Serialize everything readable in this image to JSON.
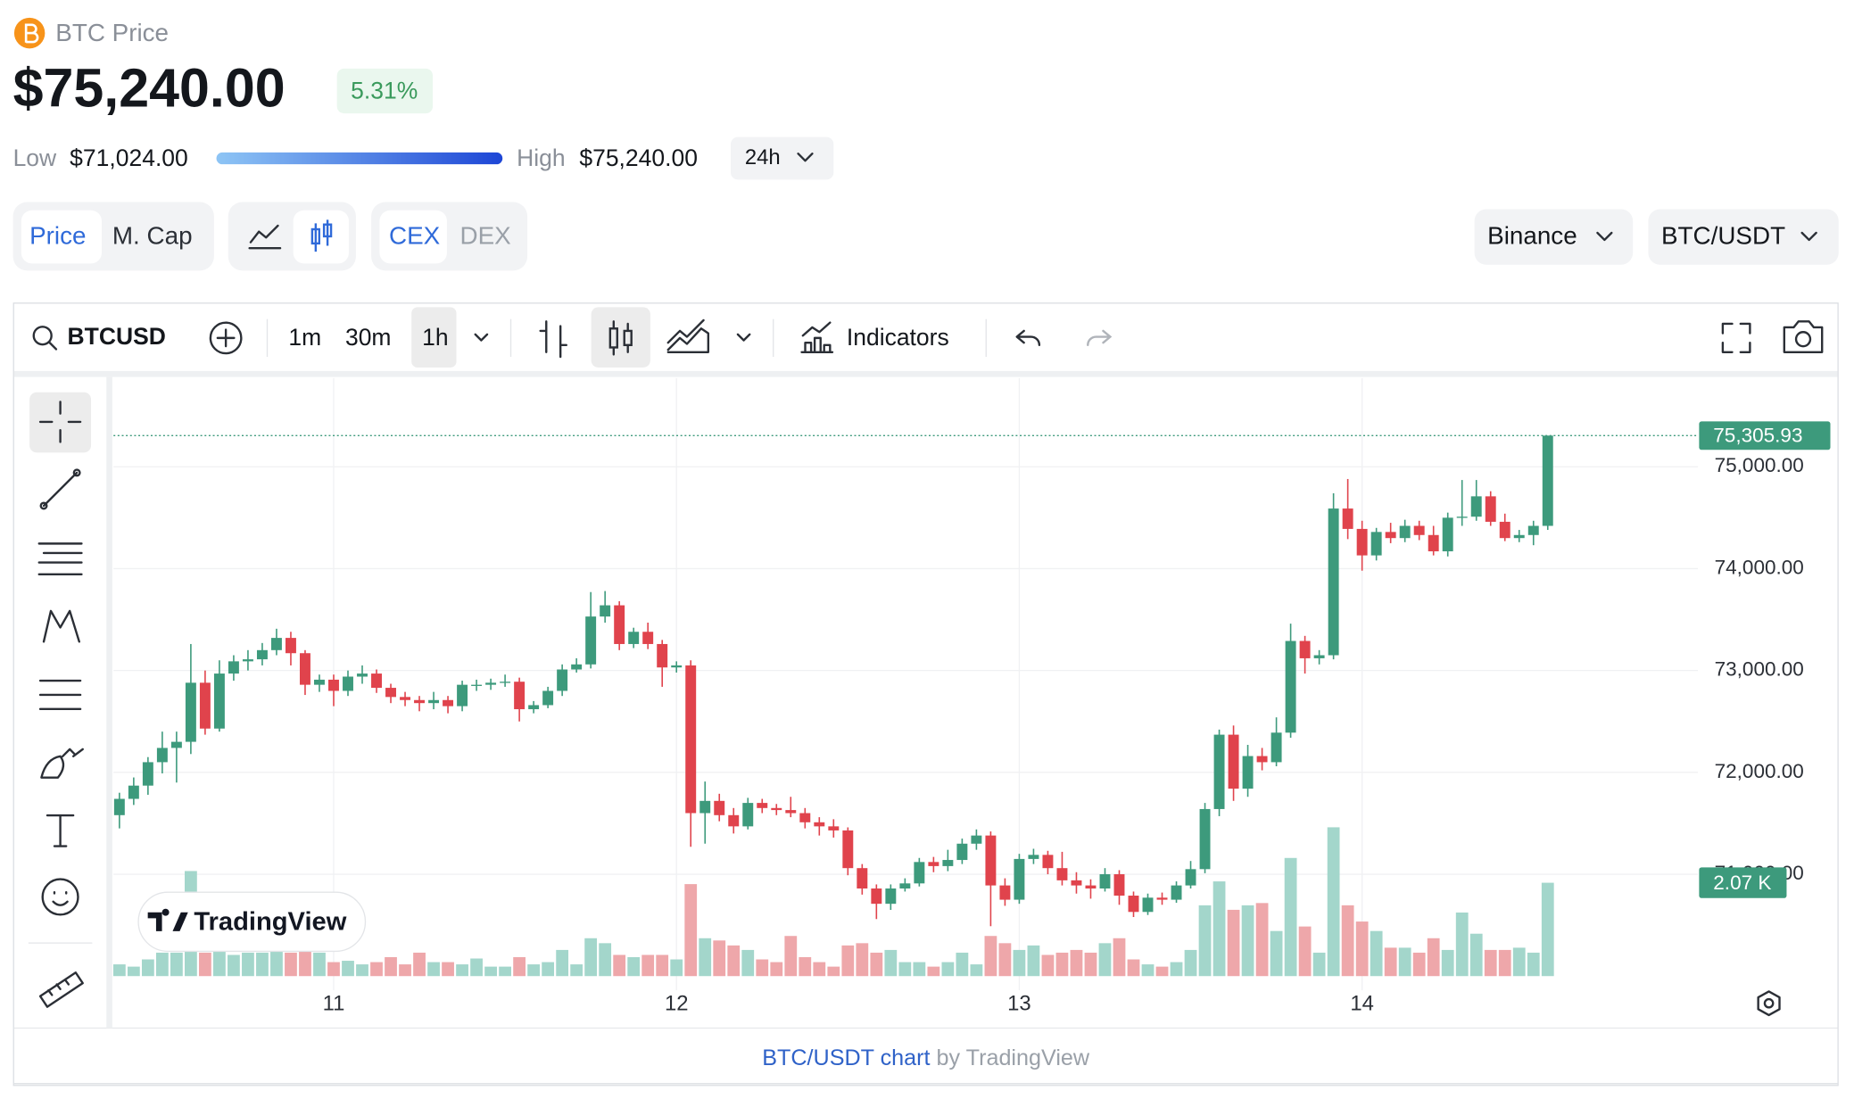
{
  "header": {
    "coin_label": "BTC Price",
    "price": "$75,240.00",
    "change": "5.31%",
    "low_label": "Low",
    "low": "$71,024.00",
    "high_label": "High",
    "high": "$75,240.00",
    "range": "24h"
  },
  "tabs": {
    "metric": [
      "Price",
      "M. Cap"
    ],
    "source": [
      "CEX",
      "DEX"
    ],
    "exchange": "Binance",
    "pair": "BTC/USDT"
  },
  "toolbar": {
    "symbol": "BTCUSD",
    "intervals": [
      "1m",
      "30m",
      "1h"
    ],
    "indicators": "Indicators"
  },
  "branding": "TradingView",
  "footer": {
    "link": "BTC/USDT chart",
    "suffix": "by TradingView"
  },
  "chart_data": {
    "type": "candlestick",
    "categories": [
      null,
      null,
      null,
      null,
      null,
      null,
      null,
      null,
      null,
      null,
      null,
      null,
      null,
      null,
      null,
      "11",
      null,
      null,
      null,
      null,
      null,
      null,
      null,
      null,
      null,
      null,
      null,
      null,
      null,
      null,
      null,
      null,
      null,
      null,
      null,
      null,
      null,
      null,
      null,
      "12",
      null,
      null,
      null,
      null,
      null,
      null,
      null,
      null,
      null,
      null,
      null,
      null,
      null,
      null,
      null,
      null,
      null,
      null,
      null,
      null,
      null,
      null,
      null,
      "13",
      null,
      null,
      null,
      null,
      null,
      null,
      null,
      null,
      null,
      null,
      null,
      null,
      null,
      null,
      null,
      null,
      null,
      null,
      null,
      null,
      null,
      null,
      null,
      "14",
      null,
      null,
      null,
      null,
      null,
      null,
      null,
      null,
      null,
      null,
      null,
      null,
      null
    ],
    "open": [
      71580,
      71740,
      71870,
      72100,
      72240,
      72300,
      72880,
      72430,
      72970,
      73090,
      73110,
      73200,
      73320,
      73170,
      72860,
      72910,
      72800,
      72940,
      72970,
      72830,
      72740,
      72710,
      72680,
      72710,
      72650,
      72860,
      72860,
      72880,
      72890,
      72620,
      72660,
      72800,
      73010,
      73060,
      73530,
      73640,
      73260,
      73380,
      73260,
      73030,
      73050,
      71600,
      71720,
      71580,
      71470,
      71700,
      71650,
      71630,
      71600,
      71510,
      71470,
      71430,
      71060,
      70860,
      70710,
      70860,
      70910,
      71120,
      71080,
      71140,
      71300,
      71380,
      70890,
      70750,
      71150,
      71190,
      71060,
      70940,
      70890,
      70860,
      71000,
      70790,
      70630,
      70770,
      70750,
      70890,
      71050,
      71640,
      72370,
      71840,
      72160,
      72100,
      72390,
      73290,
      73120,
      73150,
      74590,
      74390,
      74130,
      74360,
      74300,
      74420,
      74330,
      74170,
      74500,
      74510,
      74710,
      74460,
      74300,
      74330,
      74420
    ],
    "high": [
      71800,
      71950,
      72150,
      72400,
      72400,
      73260,
      73000,
      73100,
      73150,
      73200,
      73270,
      73410,
      73380,
      73200,
      72960,
      72960,
      73000,
      73050,
      73010,
      72870,
      72790,
      72750,
      72790,
      72750,
      72900,
      72910,
      72920,
      72960,
      72930,
      72700,
      72840,
      73060,
      73120,
      73770,
      73780,
      73680,
      73420,
      73470,
      73300,
      73090,
      73100,
      71910,
      71790,
      71650,
      71750,
      71740,
      71690,
      71760,
      71650,
      71560,
      71540,
      71460,
      71100,
      70900,
      70900,
      70960,
      71160,
      71170,
      71240,
      71350,
      71440,
      71420,
      70960,
      71200,
      71250,
      71230,
      71220,
      71020,
      70950,
      71060,
      71040,
      70830,
      70810,
      70820,
      70930,
      71130,
      71700,
      72420,
      72460,
      72270,
      72240,
      72540,
      73460,
      73340,
      73200,
      74740,
      74880,
      74470,
      74400,
      74450,
      74480,
      74470,
      74420,
      74550,
      74870,
      74870,
      74760,
      74540,
      74380,
      74470,
      75305.93
    ],
    "low": [
      71450,
      71680,
      71780,
      71990,
      71900,
      72180,
      72370,
      72400,
      72900,
      73000,
      73050,
      73150,
      73050,
      72760,
      72790,
      72650,
      72750,
      72870,
      72780,
      72680,
      72650,
      72600,
      72620,
      72580,
      72600,
      72800,
      72810,
      72840,
      72500,
      72580,
      72630,
      72750,
      72980,
      73020,
      73470,
      73200,
      73220,
      73210,
      72840,
      72980,
      71270,
      71300,
      71520,
      71400,
      71440,
      71600,
      71580,
      71560,
      71450,
      71380,
      71360,
      70990,
      70800,
      70560,
      70650,
      70830,
      70880,
      71020,
      71030,
      71100,
      71240,
      70490,
      70690,
      70710,
      71100,
      71000,
      70890,
      70810,
      70760,
      70830,
      70700,
      70580,
      70600,
      70700,
      70720,
      70860,
      71010,
      71570,
      71720,
      71760,
      72020,
      72060,
      72340,
      72970,
      73060,
      73110,
      74290,
      73980,
      74080,
      74250,
      74260,
      74280,
      74130,
      74120,
      74420,
      74470,
      74420,
      74270,
      74260,
      74230,
      74380
    ],
    "close": [
      71740,
      71870,
      72100,
      72240,
      72300,
      72880,
      72430,
      72970,
      73090,
      73110,
      73200,
      73320,
      73170,
      72860,
      72910,
      72800,
      72940,
      72970,
      72830,
      72740,
      72710,
      72680,
      72710,
      72650,
      72860,
      72860,
      72880,
      72890,
      72620,
      72660,
      72800,
      73010,
      73060,
      73530,
      73640,
      73260,
      73380,
      73260,
      73030,
      73050,
      71600,
      71720,
      71580,
      71470,
      71700,
      71650,
      71630,
      71600,
      71510,
      71470,
      71430,
      71060,
      70860,
      70710,
      70860,
      70910,
      71120,
      71080,
      71140,
      71300,
      71380,
      70890,
      70750,
      71150,
      71190,
      71060,
      70940,
      70890,
      70860,
      71000,
      70790,
      70630,
      70770,
      70750,
      70890,
      71050,
      71640,
      72370,
      71840,
      72160,
      72100,
      72390,
      73290,
      73120,
      73150,
      74590,
      74390,
      74130,
      74360,
      74300,
      74420,
      74330,
      74170,
      74500,
      74510,
      74710,
      74460,
      74300,
      74330,
      74420,
      75305.93
    ],
    "volume": [
      260,
      210,
      370,
      520,
      520,
      2330,
      520,
      580,
      470,
      520,
      520,
      580,
      520,
      580,
      520,
      310,
      340,
      260,
      310,
      420,
      260,
      520,
      310,
      310,
      260,
      390,
      210,
      210,
      420,
      260,
      310,
      580,
      260,
      840,
      730,
      470,
      420,
      470,
      470,
      370,
      2040,
      840,
      790,
      680,
      580,
      370,
      310,
      890,
      420,
      310,
      210,
      680,
      730,
      520,
      580,
      310,
      310,
      210,
      310,
      520,
      260,
      890,
      730,
      580,
      680,
      470,
      520,
      580,
      520,
      730,
      840,
      370,
      260,
      210,
      310,
      580,
      1570,
      2100,
      1470,
      1570,
      1620,
      1000,
      2620,
      1100,
      520,
      3300,
      1570,
      1210,
      1000,
      630,
      630,
      520,
      840,
      580,
      1410,
      940,
      580,
      580,
      630,
      520,
      2070
    ],
    "last_label": "75,305.93",
    "volume_label": "2.07 K",
    "ylim": [
      70000,
      75870
    ],
    "yticks": [
      {
        "value": 71000,
        "label": "71,000.00"
      },
      {
        "value": 72000,
        "label": "72,000.00"
      },
      {
        "value": 73000,
        "label": "73,000.00"
      },
      {
        "value": 74000,
        "label": "74,000.00"
      },
      {
        "value": 75000,
        "label": "75,000.00"
      }
    ],
    "y2lim": [
      0,
      13260
    ],
    "grid": true,
    "up_color": "#3d9a7c",
    "down_color": "#e0434c",
    "volume_up_color": "#a3d6cb",
    "volume_down_color": "#eea7aa"
  }
}
